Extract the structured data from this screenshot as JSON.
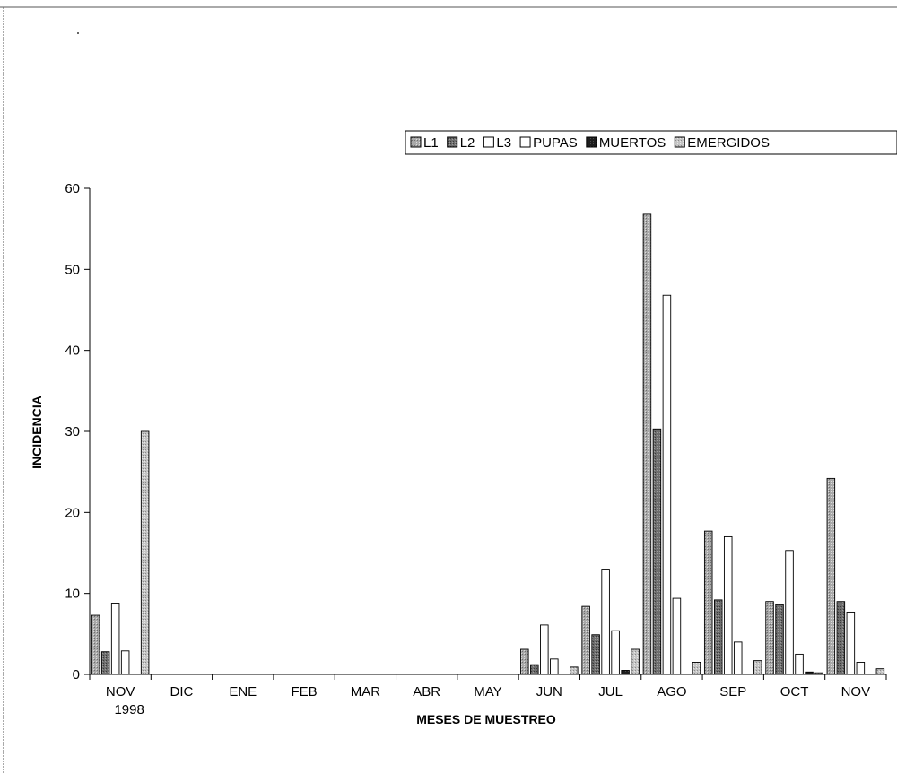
{
  "chart_data": {
    "type": "bar",
    "xlabel": "MESES DE MUESTREO",
    "ylabel": "INCIDENCIA",
    "ylim": [
      0,
      60
    ],
    "yticks": [
      0,
      10,
      20,
      30,
      40,
      50,
      60
    ],
    "grid": false,
    "legend_position": "top-right",
    "categories": [
      "NOV",
      "DIC",
      "ENE",
      "FEB",
      "MAR",
      "ABR",
      "MAY",
      "JUN",
      "JUL",
      "AGO",
      "SEP",
      "OCT",
      "NOV"
    ],
    "category_sublabels": [
      "1998",
      "",
      "",
      "",
      "",
      "",
      "",
      "",
      "",
      "",
      "",
      "",
      ""
    ],
    "series": [
      {
        "name": "L1",
        "color": "#a9a9a9",
        "values": [
          7.3,
          0,
          0,
          0,
          0,
          0,
          0,
          3.1,
          8.4,
          56.8,
          17.7,
          9,
          24.2
        ]
      },
      {
        "name": "L2",
        "color": "#6e6e6e",
        "values": [
          2.8,
          0,
          0,
          0,
          0,
          0,
          0,
          1.2,
          4.9,
          30.3,
          9.2,
          8.6,
          9
        ]
      },
      {
        "name": "L3",
        "color": "#ffffff",
        "values": [
          8.8,
          0,
          0,
          0,
          0,
          0,
          0,
          6.1,
          13,
          46.8,
          17,
          15.3,
          7.7
        ]
      },
      {
        "name": "PUPAS",
        "color": "#ffffff",
        "values": [
          2.9,
          0,
          0,
          0,
          0,
          0,
          0,
          1.9,
          5.4,
          9.4,
          4,
          2.5,
          1.5
        ]
      },
      {
        "name": "MUERTOS",
        "color": "#222222",
        "values": [
          0,
          0,
          0,
          0,
          0,
          0,
          0,
          0,
          0.5,
          0,
          0,
          0.3,
          0
        ]
      },
      {
        "name": "EMERGIDOS",
        "color": "#bdbdbd",
        "values": [
          30,
          0,
          0,
          0,
          0,
          0,
          0,
          0.9,
          3.1,
          1.5,
          1.7,
          0.2,
          0.7
        ]
      }
    ]
  }
}
